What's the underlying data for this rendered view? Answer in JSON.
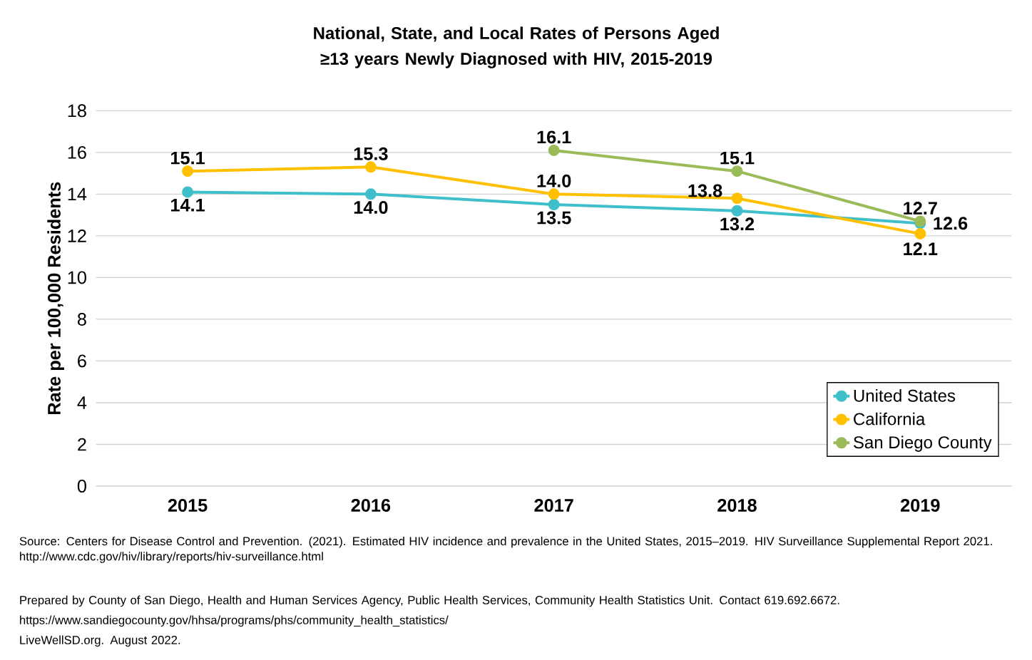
{
  "chart_data": {
    "type": "line",
    "title": "National, State, and Local Rates of Persons Aged ≥13 years Newly Diagnosed with HIV, 2015-2019",
    "ylabel": "Rate per 100,000 Residents",
    "categories": [
      "2015",
      "2016",
      "2017",
      "2018",
      "2019"
    ],
    "series": [
      {
        "name": "United States",
        "color": "#3ebfc9",
        "values": [
          14.1,
          14.0,
          13.5,
          13.2,
          12.6
        ],
        "value_labels": [
          "14.1",
          "14.0",
          "13.5",
          "13.2",
          "12.6"
        ]
      },
      {
        "name": "California",
        "color": "#ffc000",
        "values": [
          15.1,
          15.3,
          14.0,
          13.8,
          12.1
        ],
        "value_labels": [
          "15.1",
          "15.3",
          "14.0",
          "13.8",
          "12.1"
        ]
      },
      {
        "name": "San Diego County",
        "color": "#9bbb59",
        "values": [
          null,
          null,
          16.1,
          15.1,
          12.7
        ],
        "value_labels": [
          null,
          null,
          "16.1",
          "15.1",
          "12.7"
        ]
      }
    ],
    "ylim": [
      0,
      18
    ],
    "yticks": [
      0,
      2,
      4,
      6,
      8,
      10,
      12,
      14,
      16,
      18
    ],
    "grid": "y",
    "legend": "bottom right",
    "marker": "circle",
    "line_style": "solid",
    "annotations": [
      "Source: Centers for Disease Control and Prevention. (2021). Estimated HIV incidence and prevalence in the United States, 2015–2019. HIV Surveillance Supplemental Report 2021. http://www.cdc.gov/hiv/library/reports/hiv-surveillance.html",
      "Prepared by County of San Diego, Health and Human Services Agency, Public Health Services, Community Health Statistics Unit. Contact 619.692.6672.",
      "https://www.sandiegocounty.gov/hhsa/programs/phs/community_health_statistics/",
      "LiveWellSD.org. August 2022."
    ]
  }
}
